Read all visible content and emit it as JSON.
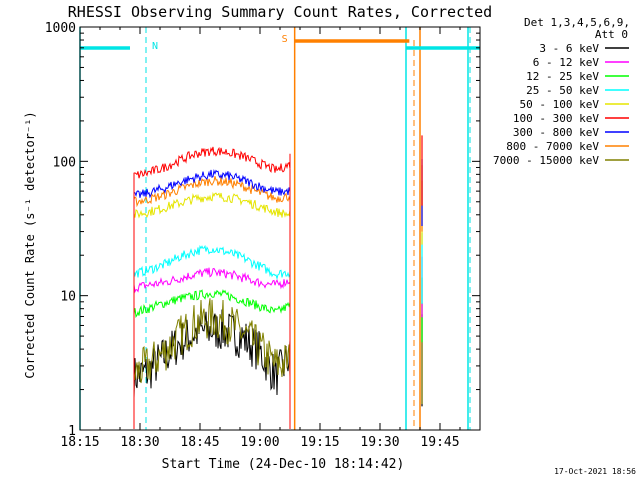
{
  "chart_data": {
    "type": "line",
    "title": "RHESSI Observing Summary Count Rates, Corrected",
    "xlabel": "Start Time (24-Dec-10 18:14:42)",
    "ylabel": "Corrected Count Rate (s⁻¹ detector⁻¹)",
    "yscale": "log",
    "ylim": [
      1,
      1000
    ],
    "xlim": [
      "18:15",
      "19:55"
    ],
    "x_ticks": [
      "18:15",
      "18:30",
      "18:45",
      "19:00",
      "19:15",
      "19:30",
      "19:45"
    ],
    "y_ticks": [
      "1",
      "10",
      "100",
      "1000"
    ],
    "legend_header": [
      "Det 1,3,4,5,6,9,",
      "Att 0"
    ],
    "legend_position": "right",
    "footer": "17-Oct-2021 18:56",
    "flag_bars": [
      {
        "label": "N",
        "color": "#00e5e5",
        "start": "18:15",
        "end": "19:55",
        "gaps": [
          [
            "18:27:30",
            "19:36:30"
          ]
        ]
      },
      {
        "label": "S",
        "color": "#ff8000",
        "start": "19:08:40",
        "end": "19:37:20"
      }
    ],
    "cyan_lines_solid": [
      "18:15",
      "19:36:30",
      "19:52"
    ],
    "cyan_lines_dashed": [
      "18:31:30",
      "19:52:30"
    ],
    "orange_lines_solid": [
      "19:08:40",
      "19:40"
    ],
    "orange_lines_dashed": [
      "19:38:30"
    ],
    "series": [
      {
        "name": "3 - 6 keV",
        "color": "#000000",
        "x": [
          "18:28:30",
          "18:32",
          "18:36",
          "18:40",
          "18:44",
          "18:48",
          "18:52",
          "18:56",
          "19:00",
          "19:04",
          "19:07:30"
        ],
        "values": [
          2.5,
          2.7,
          3.5,
          4.5,
          5.3,
          5.6,
          5.4,
          4.8,
          3.8,
          2.5,
          3.5
        ]
      },
      {
        "name": "6 - 12 keV",
        "color": "#ff00ff",
        "x": [
          "18:28:30",
          "18:32",
          "18:36",
          "18:40",
          "18:44",
          "18:48",
          "18:52",
          "18:56",
          "19:00",
          "19:04",
          "19:07:30"
        ],
        "values": [
          11.5,
          12,
          12.5,
          13.5,
          14.5,
          15,
          14.5,
          13.5,
          12.5,
          12,
          13
        ]
      },
      {
        "name": "12 - 25 keV",
        "color": "#00ff00",
        "x": [
          "18:28:30",
          "18:32",
          "18:36",
          "18:40",
          "18:44",
          "18:48",
          "18:52",
          "18:56",
          "19:00",
          "19:04",
          "19:07:30"
        ],
        "values": [
          7.5,
          8,
          8.8,
          9.5,
          10,
          10.5,
          10,
          9.2,
          8.3,
          7.5,
          8.5
        ]
      },
      {
        "name": "25 - 50 keV",
        "color": "#00ffff",
        "x": [
          "18:28:30",
          "18:32",
          "18:36",
          "18:40",
          "18:44",
          "18:48",
          "18:52",
          "18:56",
          "19:00",
          "19:04",
          "19:07:30"
        ],
        "values": [
          14.5,
          15.5,
          17,
          19.5,
          21.5,
          22.5,
          21,
          19,
          16.5,
          14.5,
          15
        ]
      },
      {
        "name": "50 - 100 keV",
        "color": "#e5e500",
        "x": [
          "18:28:30",
          "18:32",
          "18:36",
          "18:40",
          "18:44",
          "18:48",
          "18:52",
          "18:56",
          "19:00",
          "19:04",
          "19:07:30"
        ],
        "values": [
          40,
          42,
          45,
          49,
          53,
          55,
          54,
          51,
          46,
          42,
          40
        ]
      },
      {
        "name": "100 - 300 keV",
        "color": "#ff0000",
        "x": [
          "18:28:30",
          "18:32",
          "18:36",
          "18:40",
          "18:44",
          "18:48",
          "18:52",
          "18:56",
          "19:00",
          "19:04",
          "19:07:30"
        ],
        "values": [
          78,
          82,
          90,
          102,
          114,
          120,
          117,
          108,
          96,
          86,
          95
        ]
      },
      {
        "name": "300 - 800 keV",
        "color": "#0000ff",
        "x": [
          "18:28:30",
          "18:32",
          "18:36",
          "18:40",
          "18:44",
          "18:48",
          "18:52",
          "18:56",
          "19:00",
          "19:04",
          "19:07:30"
        ],
        "values": [
          55,
          58,
          63,
          70,
          76,
          80,
          78,
          72,
          65,
          59,
          60
        ]
      },
      {
        "name": "800 - 7000 keV",
        "color": "#ff8000",
        "x": [
          "18:28:30",
          "18:32",
          "18:36",
          "18:40",
          "18:44",
          "18:48",
          "18:52",
          "18:56",
          "19:00",
          "19:04",
          "19:07:30"
        ],
        "values": [
          50,
          52,
          56,
          62,
          68,
          72,
          70,
          65,
          58,
          53,
          55
        ]
      },
      {
        "name": "7000 - 15000 keV",
        "color": "#808000",
        "x": [
          "18:28:30",
          "18:32",
          "18:36",
          "18:40",
          "18:44",
          "18:48",
          "18:52",
          "18:56",
          "19:00",
          "19:04",
          "19:07:30"
        ],
        "values": [
          2.6,
          3,
          3.8,
          5,
          6.3,
          6.8,
          6.3,
          5.2,
          4,
          3,
          3.3
        ]
      }
    ]
  }
}
